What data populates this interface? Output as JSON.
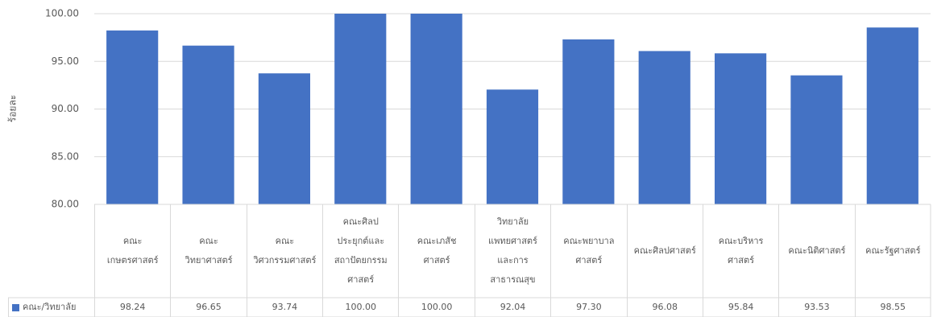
{
  "chart_data": {
    "type": "bar",
    "y_label": "ร้อยละ",
    "categories": [
      "คณะ\nเกษตรศาสตร์",
      "คณะ\nวิทยาศาสตร์",
      "คณะ\nวิศวกรรมศาสตร์",
      "คณะศิลป\nประยุกต์และ\nสถาปัตยกรรม\nศาสตร์",
      "คณะเภสัช\nศาสตร์",
      "วิทยาลัย\nแพทยศาสตร์\nและการ\nสาธารณสุข",
      "คณะพยาบาล\nศาสตร์",
      "คณะศิลปศาสตร์",
      "คณะบริหาร\nศาสตร์",
      "คณะนิติศาสตร์",
      "คณะรัฐศาสตร์"
    ],
    "series": [
      {
        "name": "คณะ/วิทยาลัย",
        "color": "#4472c4",
        "values": [
          98.24,
          96.65,
          93.74,
          100,
          100,
          92.04,
          97.3,
          96.08,
          95.84,
          93.53,
          98.55
        ],
        "value_labels": [
          "98.24",
          "96.65",
          "93.74",
          "100.00",
          "100.00",
          "92.04",
          "97.30",
          "96.08",
          "95.84",
          "93.53",
          "98.55"
        ]
      }
    ],
    "ylim": [
      80,
      100
    ],
    "yticks": [
      {
        "value": 80,
        "label": "80.00"
      },
      {
        "value": 85,
        "label": "85.00"
      },
      {
        "value": 90,
        "label": "90.00"
      },
      {
        "value": 95,
        "label": "95.00"
      },
      {
        "value": 100,
        "label": "100.00"
      }
    ],
    "grid": true
  }
}
